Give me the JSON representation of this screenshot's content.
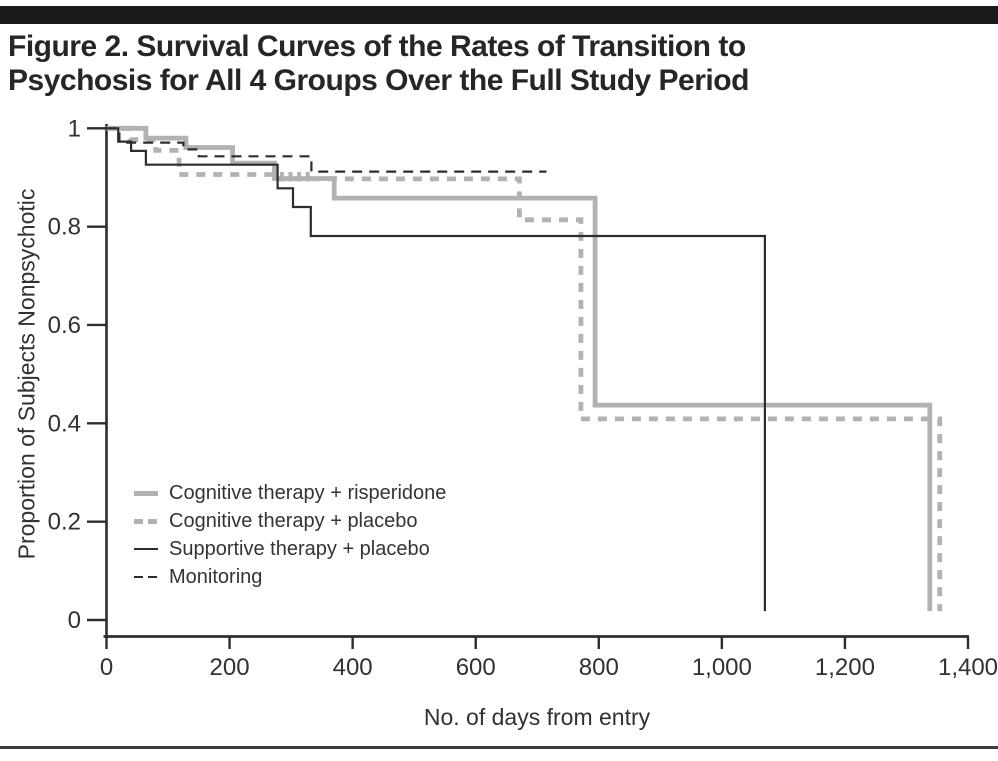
{
  "title": {
    "line1": "Figure 2. Survival Curves of the Rates of Transition to",
    "line2": "Psychosis for All 4 Groups Over the Full Study Period"
  },
  "legend": {
    "items": [
      {
        "label": "Cognitive therapy + risperidone",
        "series": "ctr",
        "swatch": "gray-solid"
      },
      {
        "label": "Cognitive therapy + placebo",
        "series": "ctp",
        "swatch": "gray-dashed"
      },
      {
        "label": "Supportive therapy + placebo",
        "series": "stp",
        "swatch": "black-solid"
      },
      {
        "label": "Monitoring",
        "series": "mon",
        "swatch": "black-dashed"
      }
    ]
  },
  "colors": {
    "gray_line": "#b2b2b2",
    "black_line": "#2d2d2d",
    "axis": "#2d2d2d",
    "tick_label": "#313131",
    "title_text": "#262626",
    "top_bar": "#1a1a1a",
    "bottom_rule": "#3d3d3d"
  },
  "chart_data": {
    "type": "line",
    "subtype": "kaplan-meier-step",
    "title": "Figure 2. Survival Curves of the Rates of Transition to Psychosis for All 4 Groups Over the Full Study Period",
    "xlabel": "No. of days from entry",
    "ylabel": "Proportion of Subjects Nonpsychotic",
    "xlim": [
      0,
      1400
    ],
    "ylim": [
      0,
      1
    ],
    "grid": false,
    "legend_position": "lower-left-inside",
    "x_ticks": {
      "values": [
        0,
        200,
        400,
        600,
        800,
        1000,
        1200,
        1400
      ],
      "labels": [
        "0",
        "200",
        "400",
        "600",
        "800",
        "1,000",
        "1,200",
        "1,400"
      ]
    },
    "y_ticks": {
      "values": [
        1,
        0.8,
        0.6,
        0.4,
        0.2,
        0
      ],
      "labels": [
        "1",
        "0.8",
        "0.6",
        "0.4",
        "0.2",
        "0"
      ]
    },
    "series": [
      {
        "id": "ctr",
        "name": "Cognitive therapy + risperidone",
        "style": "solid",
        "color": "#b2b2b2",
        "width": 4.8,
        "dash": "",
        "points": [
          [
            0,
            1
          ],
          [
            64,
            1
          ],
          [
            64,
            0.98
          ],
          [
            129,
            0.98
          ],
          [
            129,
            0.961
          ],
          [
            205,
            0.961
          ],
          [
            205,
            0.929
          ],
          [
            273,
            0.929
          ],
          [
            273,
            0.898
          ],
          [
            370,
            0.898
          ],
          [
            370,
            0.858
          ],
          [
            794,
            0.858
          ],
          [
            794,
            0.437
          ],
          [
            1338,
            0.437
          ],
          [
            1338,
            0.018
          ]
        ]
      },
      {
        "id": "ctp",
        "name": "Cognitive therapy + placebo",
        "style": "dashed",
        "color": "#b2b2b2",
        "width": 4.8,
        "dash": "9 8",
        "points": [
          [
            0,
            1
          ],
          [
            38,
            1
          ],
          [
            38,
            0.977
          ],
          [
            80,
            0.977
          ],
          [
            80,
            0.955
          ],
          [
            118,
            0.955
          ],
          [
            118,
            0.906
          ],
          [
            273,
            0.906
          ],
          [
            273,
            0.897
          ],
          [
            671,
            0.897
          ],
          [
            671,
            0.814
          ],
          [
            771,
            0.814
          ],
          [
            771,
            0.409
          ],
          [
            1354,
            0.409
          ],
          [
            1354,
            0.018
          ]
        ]
      },
      {
        "id": "stp",
        "name": "Supportive therapy + placebo",
        "style": "solid",
        "color": "#2d2d2d",
        "width": 2.2,
        "dash": "",
        "points": [
          [
            0,
            1
          ],
          [
            19,
            1
          ],
          [
            19,
            0.973
          ],
          [
            40,
            0.973
          ],
          [
            40,
            0.954
          ],
          [
            64,
            0.954
          ],
          [
            64,
            0.926
          ],
          [
            278,
            0.926
          ],
          [
            278,
            0.878
          ],
          [
            303,
            0.878
          ],
          [
            303,
            0.84
          ],
          [
            332,
            0.84
          ],
          [
            332,
            0.781
          ],
          [
            1070,
            0.781
          ],
          [
            1070,
            0.018
          ]
        ]
      },
      {
        "id": "mon",
        "name": "Monitoring",
        "style": "dashed",
        "color": "#2d2d2d",
        "width": 2.2,
        "dash": "10 7",
        "points": [
          [
            0,
            1
          ],
          [
            21,
            1
          ],
          [
            21,
            0.971
          ],
          [
            125,
            0.971
          ],
          [
            125,
            0.957
          ],
          [
            150,
            0.957
          ],
          [
            150,
            0.943
          ],
          [
            333,
            0.943
          ],
          [
            333,
            0.912
          ],
          [
            715,
            0.912
          ]
        ]
      }
    ],
    "censor_marks": [
      {
        "series": "ctp",
        "day": 285,
        "value": 0.898
      },
      {
        "series": "ctp",
        "day": 299,
        "value": 0.898
      },
      {
        "series": "ctp",
        "day": 313,
        "value": 0.898
      },
      {
        "series": "ctp",
        "day": 327,
        "value": 0.898
      }
    ]
  }
}
